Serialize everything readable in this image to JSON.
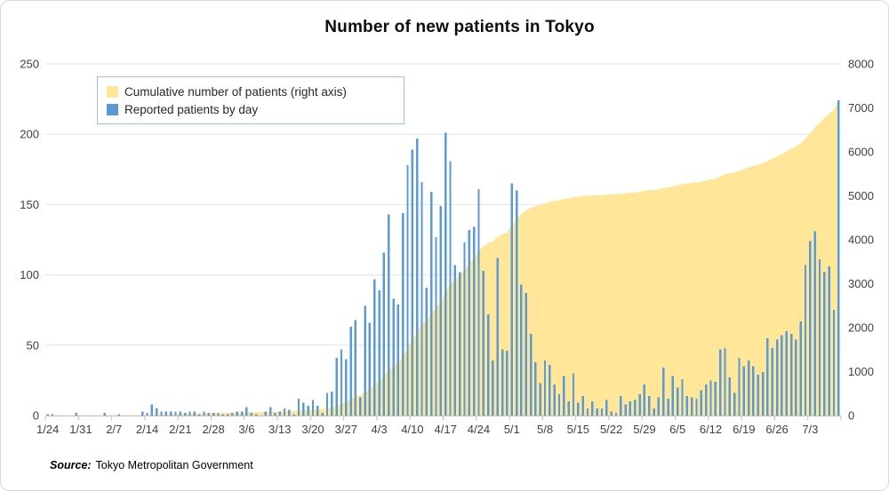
{
  "title": "Number of new patients in Tokyo",
  "legend": {
    "items": [
      {
        "label": "Cumulative number of patients (right axis)",
        "color": "#ffe699"
      },
      {
        "label": "Reported patients by day",
        "color": "#5b9bd5"
      }
    ]
  },
  "source": {
    "label": "Source:",
    "text": "Tokyo Metropolitan Government"
  },
  "colors": {
    "bar": "#5b9bd5",
    "area": "#ffe699",
    "gridline": "#e2e2e2",
    "axis_line": "#bfbfbf",
    "tick_text": "#404040",
    "legend_border": "#9dc3e6"
  },
  "chart_data": {
    "type": "combo-bar-area",
    "title": "Number of new patients in Tokyo",
    "grid": "horizontal",
    "legend_position": "inside-top-left",
    "x": {
      "unit": "day",
      "first_day": "1/24",
      "last_day": "7/9",
      "tick_label_interval_days": 7,
      "tick_labels": [
        "1/24",
        "1/31",
        "2/7",
        "2/14",
        "2/21",
        "2/28",
        "3/6",
        "3/13",
        "3/20",
        "3/27",
        "4/3",
        "4/10",
        "4/17",
        "4/24",
        "5/1",
        "5/8",
        "5/15",
        "5/22",
        "5/29",
        "6/5",
        "6/12",
        "6/19",
        "6/26",
        "7/3"
      ]
    },
    "left_axis": {
      "applies_to": "Reported patients by day",
      "range": [
        0,
        250
      ],
      "ticks": [
        0,
        50,
        100,
        150,
        200,
        250
      ]
    },
    "right_axis": {
      "applies_to": "Cumulative number of patients",
      "range": [
        0,
        8000
      ],
      "ticks": [
        0,
        1000,
        2000,
        3000,
        4000,
        5000,
        6000,
        7000,
        8000
      ]
    },
    "series": [
      {
        "name": "Cumulative number of patients (right axis)",
        "type": "area",
        "axis": "right",
        "color": "#ffe699",
        "values_are": "running total of the daily bar series",
        "final_cumulative_value": 7174
      },
      {
        "name": "Reported patients by day",
        "type": "bar",
        "axis": "left",
        "color": "#5b9bd5",
        "values": [
          1,
          1,
          0,
          0,
          0,
          0,
          2,
          0,
          0,
          0,
          0,
          0,
          2,
          0,
          0,
          1,
          0,
          0,
          0,
          0,
          3,
          2,
          8,
          5,
          3,
          3,
          3,
          3,
          3,
          2,
          3,
          3,
          1,
          3,
          2,
          2,
          2,
          1,
          1,
          2,
          3,
          3,
          6,
          2,
          1,
          0,
          3,
          6,
          2,
          3,
          5,
          4,
          1,
          12,
          9,
          7,
          11,
          7,
          2,
          16,
          17,
          41,
          47,
          40,
          63,
          68,
          13,
          78,
          66,
          97,
          89,
          116,
          143,
          83,
          79,
          144,
          178,
          189,
          197,
          166,
          91,
          159,
          127,
          149,
          201,
          181,
          107,
          102,
          123,
          132,
          134,
          161,
          103,
          72,
          39,
          112,
          47,
          46,
          165,
          160,
          93,
          87,
          58,
          38,
          23,
          39,
          36,
          22,
          15,
          28,
          10,
          30,
          9,
          14,
          5,
          10,
          5,
          5,
          11,
          3,
          2,
          14,
          8,
          10,
          11,
          15,
          22,
          14,
          5,
          13,
          34,
          12,
          28,
          20,
          26,
          14,
          13,
          12,
          18,
          22,
          25,
          24,
          47,
          48,
          27,
          16,
          41,
          35,
          39,
          35,
          29,
          31,
          55,
          48,
          54,
          57,
          60,
          58,
          54,
          67,
          107,
          124,
          131,
          111,
          102,
          106,
          75,
          224
        ]
      }
    ]
  }
}
